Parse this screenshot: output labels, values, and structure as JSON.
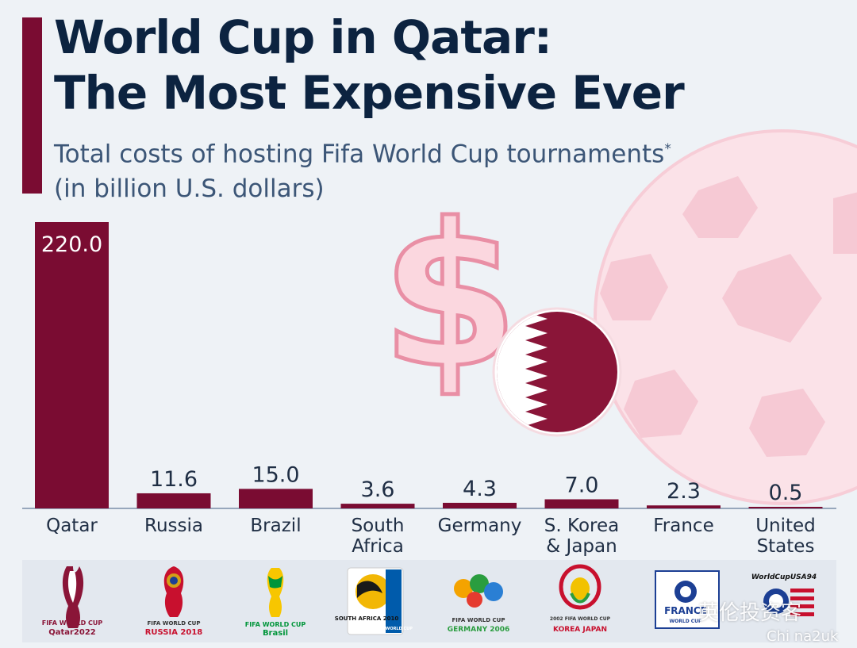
{
  "header": {
    "title_line1": "World Cup in Qatar:",
    "title_line2": "The Most Expensive Ever",
    "subtitle_line1": "Total costs of hosting Fifa World Cup tournaments",
    "subtitle_marker": "*",
    "subtitle_line2": "(in billion U.S. dollars)"
  },
  "colors": {
    "bar": "#7a0c32",
    "title": "#0c2340",
    "subtitle": "#3c5677",
    "background": "#eef2f6",
    "decoration_pink": "#f8d6de"
  },
  "chart_data": {
    "type": "bar",
    "title": "World Cup in Qatar: The Most Expensive Ever",
    "subtitle": "Total costs of hosting Fifa World Cup tournaments* (in billion U.S. dollars)",
    "categories": [
      [
        "Qatar"
      ],
      [
        "Russia"
      ],
      [
        "Brazil"
      ],
      [
        "South",
        "Africa"
      ],
      [
        "Germany"
      ],
      [
        "S. Korea",
        "& Japan"
      ],
      [
        "France"
      ],
      [
        "United",
        "States"
      ]
    ],
    "values": [
      220.0,
      11.6,
      15.0,
      3.6,
      4.3,
      7.0,
      2.3,
      0.5
    ],
    "value_labels": [
      "220.0",
      "11.6",
      "15.0",
      "3.6",
      "4.3",
      "7.0",
      "2.3",
      "0.5"
    ],
    "ylim": [
      0,
      220
    ],
    "grid": false,
    "legend": "none"
  },
  "logos": [
    {
      "icon": "qatar-2022-logo-icon",
      "line1": "FIFA WORLD CUP",
      "line2": "Qatar2022"
    },
    {
      "icon": "russia-2018-logo-icon",
      "line1": "FIFA WORLD CUP",
      "line2": "RUSSIA 2018"
    },
    {
      "icon": "brazil-2014-logo-icon",
      "line1": "FIFA WORLD CUP",
      "line2": "Brasil"
    },
    {
      "icon": "south-africa-2010-logo-icon",
      "line1": "SOUTH AFRICA 2010",
      "line2": "FIFA WORLD CUP"
    },
    {
      "icon": "germany-2006-logo-icon",
      "line1": "FIFA WORLD CUP",
      "line2": "GERMANY 2006"
    },
    {
      "icon": "korea-japan-2002-logo-icon",
      "line1": "2002 FIFA WORLD CUP",
      "line2": "KOREA JAPAN"
    },
    {
      "icon": "france-1998-logo-icon",
      "line1": "FRANCE",
      "line2": "WORLD CUP"
    },
    {
      "icon": "usa-1994-logo-icon",
      "line1": "WorldCupUSA94",
      "line2": ""
    }
  ],
  "watermark": {
    "text": "英伦投资客",
    "subtext": "Chi na2uk"
  }
}
